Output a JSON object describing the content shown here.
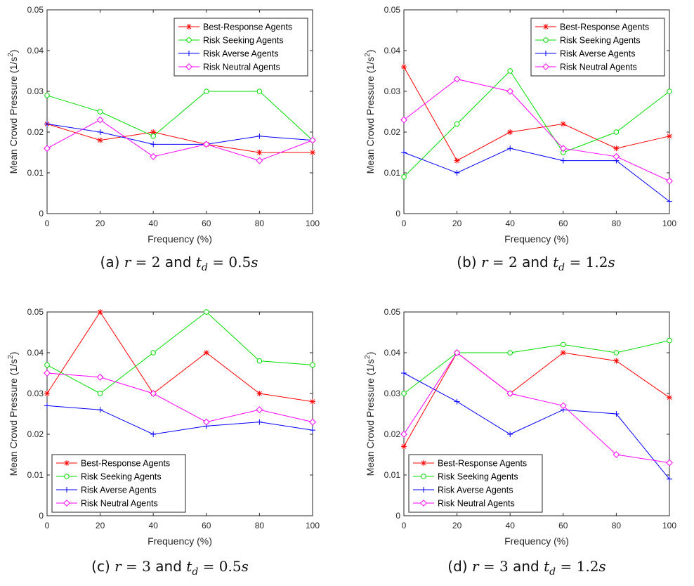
{
  "colors": {
    "best_response": "#ff0000",
    "risk_seeking": "#00dd00",
    "risk_averse": "#0000ff",
    "risk_neutral": "#ff00ff"
  },
  "captions": [
    {
      "prefix": "(a)",
      "and": "and",
      "r": "r",
      "r_val": "2",
      "td": "t",
      "td_sub": "d",
      "td_val": "0.5",
      "unit": "s"
    },
    {
      "prefix": "(b)",
      "and": "and",
      "r": "r",
      "r_val": "2",
      "td": "t",
      "td_sub": "d",
      "td_val": "1.2",
      "unit": "s"
    },
    {
      "prefix": "(c)",
      "and": "and",
      "r": "r",
      "r_val": "3",
      "td": "t",
      "td_sub": "d",
      "td_val": "0.5",
      "unit": "s"
    },
    {
      "prefix": "(d)",
      "and": "and",
      "r": "r",
      "r_val": "3",
      "td": "t",
      "td_sub": "d",
      "td_val": "1.2",
      "unit": "s"
    }
  ],
  "chart_data": [
    {
      "type": "line",
      "title": "",
      "xlabel": "Frequency (%)",
      "ylabel": "Mean Crowd Pressure (1/s",
      "ylabel_sup": "2",
      "ylabel_end": ")",
      "x": [
        0,
        20,
        40,
        60,
        80,
        100
      ],
      "xlim": [
        0,
        100
      ],
      "ylim": [
        0,
        0.05
      ],
      "xticks": [
        "0",
        "20",
        "40",
        "60",
        "80",
        "100"
      ],
      "yticks": [
        "0",
        "0.01",
        "0.02",
        "0.03",
        "0.04",
        "0.05"
      ],
      "grid": false,
      "legend_position": "top-right",
      "series": [
        {
          "name": "Best-Response Agents",
          "marker": "star",
          "color_key": "best_response",
          "values": [
            0.022,
            0.018,
            0.02,
            0.017,
            0.015,
            0.015
          ]
        },
        {
          "name": "Risk Seeking Agents",
          "marker": "circle",
          "color_key": "risk_seeking",
          "values": [
            0.029,
            0.025,
            0.019,
            0.03,
            0.03,
            0.018
          ]
        },
        {
          "name": "Risk Averse Agents",
          "marker": "plus",
          "color_key": "risk_averse",
          "values": [
            0.022,
            0.02,
            0.017,
            0.017,
            0.019,
            0.018
          ]
        },
        {
          "name": "Risk Neutral Agents",
          "marker": "diamond",
          "color_key": "risk_neutral",
          "values": [
            0.016,
            0.023,
            0.014,
            0.017,
            0.013,
            0.018
          ]
        }
      ]
    },
    {
      "type": "line",
      "title": "",
      "xlabel": "Frequency (%)",
      "ylabel": "Mean Crowd Pressure (1/s",
      "ylabel_sup": "2",
      "ylabel_end": ")",
      "x": [
        0,
        20,
        40,
        60,
        80,
        100
      ],
      "xlim": [
        0,
        100
      ],
      "ylim": [
        0,
        0.05
      ],
      "xticks": [
        "0",
        "20",
        "40",
        "60",
        "80",
        "100"
      ],
      "yticks": [
        "0",
        "0.01",
        "0.02",
        "0.03",
        "0.04",
        "0.05"
      ],
      "grid": false,
      "legend_position": "top-right",
      "series": [
        {
          "name": "Best-Response Agents",
          "marker": "star",
          "color_key": "best_response",
          "values": [
            0.036,
            0.013,
            0.02,
            0.022,
            0.016,
            0.019
          ]
        },
        {
          "name": "Risk Seeking Agents",
          "marker": "circle",
          "color_key": "risk_seeking",
          "values": [
            0.009,
            0.022,
            0.035,
            0.015,
            0.02,
            0.03
          ]
        },
        {
          "name": "Risk Averse Agents",
          "marker": "plus",
          "color_key": "risk_averse",
          "values": [
            0.015,
            0.01,
            0.016,
            0.013,
            0.013,
            0.003
          ]
        },
        {
          "name": "Risk Neutral Agents",
          "marker": "diamond",
          "color_key": "risk_neutral",
          "values": [
            0.023,
            0.033,
            0.03,
            0.016,
            0.014,
            0.008
          ]
        }
      ]
    },
    {
      "type": "line",
      "title": "",
      "xlabel": "Frequency (%)",
      "ylabel": "Mean Crowd Pressure (1/s",
      "ylabel_sup": "2",
      "ylabel_end": ")",
      "x": [
        0,
        20,
        40,
        60,
        80,
        100
      ],
      "xlim": [
        0,
        100
      ],
      "ylim": [
        0,
        0.05
      ],
      "xticks": [
        "0",
        "20",
        "40",
        "60",
        "80",
        "100"
      ],
      "yticks": [
        "0",
        "0.01",
        "0.02",
        "0.03",
        "0.04",
        "0.05"
      ],
      "grid": false,
      "legend_position": "bottom-left",
      "series": [
        {
          "name": "Best-Response Agents",
          "marker": "star",
          "color_key": "best_response",
          "values": [
            0.03,
            0.05,
            0.03,
            0.04,
            0.03,
            0.028
          ]
        },
        {
          "name": "Risk Seeking Agents",
          "marker": "circle",
          "color_key": "risk_seeking",
          "values": [
            0.037,
            0.03,
            0.04,
            0.05,
            0.038,
            0.037
          ]
        },
        {
          "name": "Risk Averse Agents",
          "marker": "plus",
          "color_key": "risk_averse",
          "values": [
            0.027,
            0.026,
            0.02,
            0.022,
            0.023,
            0.021
          ]
        },
        {
          "name": "Risk Neutral Agents",
          "marker": "diamond",
          "color_key": "risk_neutral",
          "values": [
            0.035,
            0.034,
            0.03,
            0.023,
            0.026,
            0.023
          ]
        }
      ]
    },
    {
      "type": "line",
      "title": "",
      "xlabel": "Frequency (%)",
      "ylabel": "Mean Crowd Pressure (1/s",
      "ylabel_sup": "2",
      "ylabel_end": ")",
      "x": [
        0,
        20,
        40,
        60,
        80,
        100
      ],
      "xlim": [
        0,
        100
      ],
      "ylim": [
        0,
        0.05
      ],
      "xticks": [
        "0",
        "20",
        "40",
        "60",
        "80",
        "100"
      ],
      "yticks": [
        "0",
        "0.01",
        "0.02",
        "0.03",
        "0.04",
        "0.05"
      ],
      "grid": false,
      "legend_position": "bottom-left",
      "series": [
        {
          "name": "Best-Response Agents",
          "marker": "star",
          "color_key": "best_response",
          "values": [
            0.017,
            0.04,
            0.03,
            0.04,
            0.038,
            0.029
          ]
        },
        {
          "name": "Risk Seeking Agents",
          "marker": "circle",
          "color_key": "risk_seeking",
          "values": [
            0.03,
            0.04,
            0.04,
            0.042,
            0.04,
            0.043
          ]
        },
        {
          "name": "Risk Averse Agents",
          "marker": "plus",
          "color_key": "risk_averse",
          "values": [
            0.035,
            0.028,
            0.02,
            0.026,
            0.025,
            0.009
          ]
        },
        {
          "name": "Risk Neutral Agents",
          "marker": "diamond",
          "color_key": "risk_neutral",
          "values": [
            0.02,
            0.04,
            0.03,
            0.027,
            0.015,
            0.013
          ]
        }
      ]
    }
  ]
}
